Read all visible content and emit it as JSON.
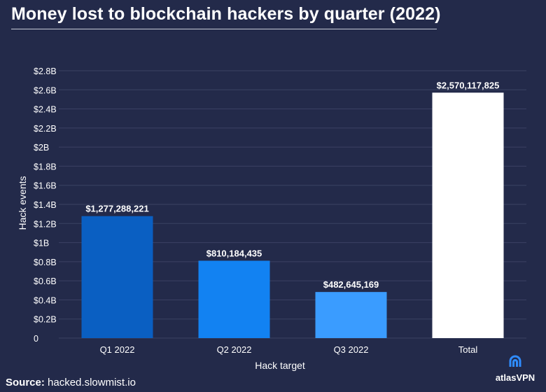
{
  "chart_data": {
    "type": "bar",
    "title": "Money lost to blockchain hackers by quarter (2022)",
    "xlabel": "Hack target",
    "ylabel": "Hack events",
    "categories": [
      "Q1 2022",
      "Q2 2022",
      "Q3 2022",
      "Total"
    ],
    "values": [
      1277288221,
      810184435,
      482645169,
      2570117825
    ],
    "data_labels": [
      "$1,277,288,221",
      "$810,184,435",
      "$482,645,169",
      "$2,570,117,825"
    ],
    "bar_colors": [
      "#0a5fc2",
      "#1282f2",
      "#3a9cff",
      "#ffffff"
    ],
    "ylim": [
      0,
      2800000000
    ],
    "yticks": [
      {
        "value": 0,
        "label": "0"
      },
      {
        "value": 200000000,
        "label": "$0.2B"
      },
      {
        "value": 400000000,
        "label": "$0.4B"
      },
      {
        "value": 600000000,
        "label": "$0.6B"
      },
      {
        "value": 800000000,
        "label": "$0.8B"
      },
      {
        "value": 1000000000,
        "label": "$1B"
      },
      {
        "value": 1200000000,
        "label": "$1.2B"
      },
      {
        "value": 1400000000,
        "label": "$1.4B"
      },
      {
        "value": 1600000000,
        "label": "$1.6B"
      },
      {
        "value": 1800000000,
        "label": "$1.8B"
      },
      {
        "value": 2000000000,
        "label": "$2B"
      },
      {
        "value": 2200000000,
        "label": "$2.2B"
      },
      {
        "value": 2400000000,
        "label": "$2.4B"
      },
      {
        "value": 2600000000,
        "label": "$2.6B"
      },
      {
        "value": 2800000000,
        "label": "$2.8B"
      }
    ],
    "grid": true,
    "legend": "none"
  },
  "source": {
    "prefix": "Source:",
    "text": " hacked.slowmist.io"
  },
  "brand": {
    "name": "atlasVPN",
    "icon": "atlasvpn-logo-icon"
  },
  "colors": {
    "background": "#232a4a",
    "grid": "#3b4263",
    "text": "#ffffff"
  }
}
